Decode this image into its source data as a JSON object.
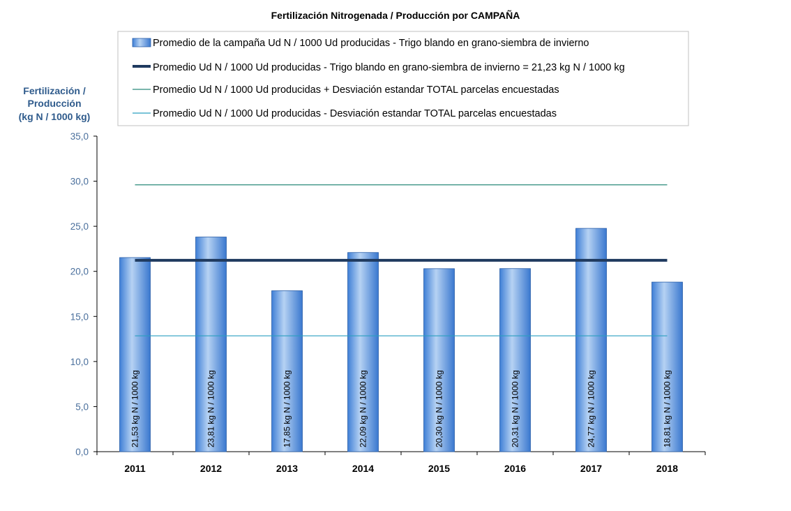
{
  "chart_data": {
    "type": "bar",
    "title": "Fertilización Nitrogenada / Producción por CAMPAÑA",
    "ylabel": [
      "Fertilización /",
      "Producción",
      "(kg N / 1000 kg)"
    ],
    "xlabel": "",
    "categories": [
      "2011",
      "2012",
      "2013",
      "2014",
      "2015",
      "2016",
      "2017",
      "2018"
    ],
    "values": [
      21.53,
      23.81,
      17.85,
      22.09,
      20.3,
      20.31,
      24.77,
      18.81
    ],
    "data_labels": [
      "21,53 kg N / 1000 kg",
      "23,81 kg N / 1000 kg",
      "17,85 kg N / 1000 kg",
      "22,09 kg N / 1000 kg",
      "20,30 kg N / 1000 kg",
      "20,31 kg N / 1000 kg",
      "24,77 kg N / 1000 kg",
      "18,81 kg N / 1000 kg"
    ],
    "ylim": [
      0,
      35
    ],
    "yticks": [
      "0,0",
      "5,0",
      "10,0",
      "15,0",
      "20,0",
      "25,0",
      "30,0",
      "35,0"
    ],
    "grid": false,
    "legend_position": "top",
    "series": [
      {
        "name": "Promedio de la campaña Ud N / 1000 Ud producidas - Trigo blando en grano-siembra de invierno",
        "kind": "bar",
        "color": "#4f8fe0"
      },
      {
        "name": "Promedio Ud N / 1000 Ud producidas - Trigo blando en grano-siembra de invierno = 21,23 kg N / 1000 kg",
        "kind": "line",
        "value": 21.23,
        "color": "#1f3a5f"
      },
      {
        "name": "Promedio Ud N / 1000 Ud producidas + Desviación estandar TOTAL parcelas encuestadas",
        "kind": "line",
        "value": 29.6,
        "color": "#2a8a7a"
      },
      {
        "name": "Promedio Ud N / 1000 Ud producidas - Desviación estandar TOTAL parcelas encuestadas",
        "kind": "line",
        "value": 12.85,
        "color": "#2a9fc0"
      }
    ]
  }
}
